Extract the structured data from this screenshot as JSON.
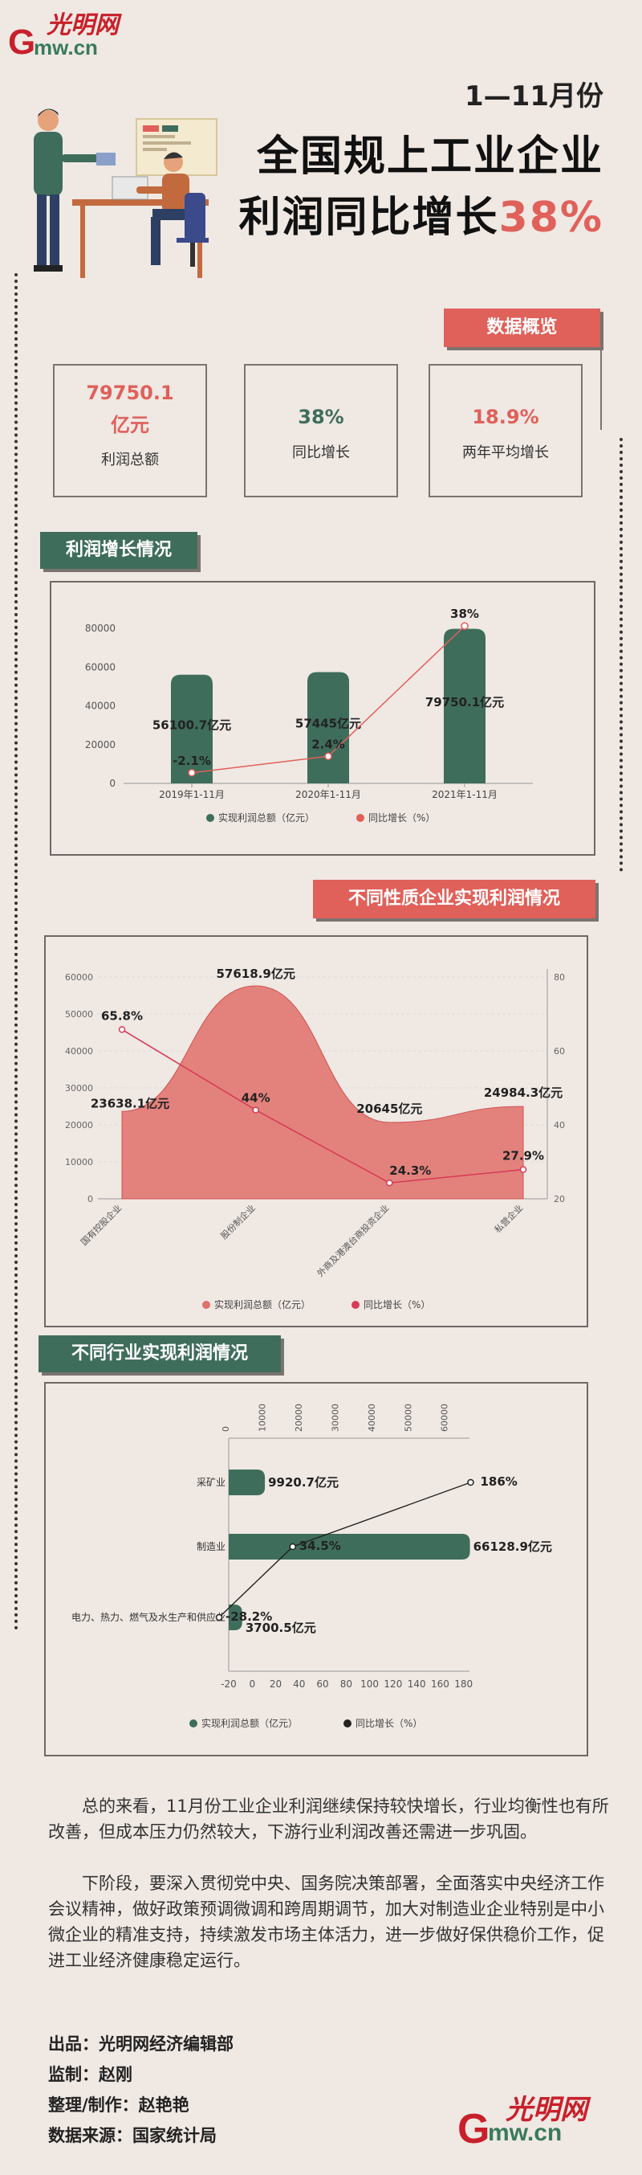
{
  "logo": {
    "cn": "光明网",
    "g": "G",
    "mw": "mw.cn"
  },
  "header": {
    "period": "1—11月份",
    "title_line1": "全国规上工业企业",
    "title_line2": "利润同比增长",
    "title_highlight": "38%"
  },
  "overview": {
    "tag": "数据概览",
    "stats": [
      {
        "value": "79750.1",
        "value2": "亿元",
        "label": "利润总额"
      },
      {
        "value": "38%",
        "label": "同比增长"
      },
      {
        "value": "18.9%",
        "label": "两年平均增长"
      }
    ]
  },
  "section1": {
    "tag": "利润增长情况",
    "chart_data": {
      "type": "bar",
      "categories": [
        "2019年1-11月",
        "2020年1-11月",
        "2021年1-11月"
      ],
      "series": [
        {
          "name": "实现利润总额（亿元）",
          "values": [
            56100.7,
            57445,
            79750.1
          ],
          "labels": [
            "56100.7亿元",
            "57445亿元",
            "79750.1亿元"
          ]
        },
        {
          "name": "同比增长（%）",
          "values": [
            -2.1,
            2.4,
            38
          ],
          "labels": [
            "-2.1%",
            "2.4%",
            "38%"
          ]
        }
      ],
      "y_ticks": [
        "0",
        "20000",
        "40000",
        "60000",
        "80000"
      ],
      "ylim": [
        0,
        85000
      ],
      "growth_range": [
        -5,
        40
      ],
      "bar_color": "#3f6d5c",
      "line_color": "#e0605a"
    }
  },
  "section2": {
    "tag": "不同性质企业实现利润情况",
    "chart_data": {
      "type": "area",
      "categories": [
        "国有控股企业",
        "股份制企业",
        "外商及港澳台商投资企业",
        "私营企业"
      ],
      "series": [
        {
          "name": "实现利润总额（亿元）",
          "values": [
            23638.1,
            57618.9,
            20645,
            24984.3
          ],
          "labels": [
            "23638.1亿元",
            "57618.9亿元",
            "20645亿元",
            "24984.3亿元"
          ]
        },
        {
          "name": "同比增长（%）",
          "values": [
            65.8,
            44,
            24.3,
            27.9
          ],
          "labels": [
            "65.8%",
            "44%",
            "24.3%",
            "27.9%"
          ]
        }
      ],
      "y_ticks_left": [
        "0",
        "10000",
        "20000",
        "30000",
        "40000",
        "50000",
        "60000"
      ],
      "y_ticks_right": [
        "20",
        "40",
        "60",
        "80"
      ],
      "ylim_left": [
        0,
        60000
      ],
      "ylim_right": [
        20,
        80
      ],
      "area_color": "#e0706a",
      "line_color": "#d63c58"
    }
  },
  "section3": {
    "tag": "不同行业实现利润情况",
    "chart_data": {
      "type": "bar",
      "orientation": "horizontal",
      "categories": [
        "采矿业",
        "制造业",
        "电力、热力、燃气及水生产和供应业"
      ],
      "series": [
        {
          "name": "实现利润总额（亿元）",
          "values": [
            9920.7,
            66128.9,
            3700.5
          ],
          "labels": [
            "9920.7亿元",
            "66128.9亿元",
            "3700.5亿元"
          ]
        },
        {
          "name": "同比增长（%）",
          "values": [
            186,
            34.5,
            -28.2
          ],
          "labels": [
            "186%",
            "34.5%",
            "-28.2%"
          ]
        }
      ],
      "top_ticks": [
        "0",
        "10000",
        "20000",
        "30000",
        "40000",
        "50000",
        "60000"
      ],
      "bottom_ticks": [
        "-20",
        "0",
        "20",
        "40",
        "60",
        "80",
        "100",
        "120",
        "140",
        "160",
        "180"
      ],
      "xlim_top": [
        0,
        66000
      ],
      "xlim_bottom": [
        -20,
        185
      ],
      "bar_color": "#3f6d5c",
      "line_color": "#222222"
    }
  },
  "summary": {
    "p1": "总的来看，11月份工业企业利润继续保持较快增长，行业均衡性也有所改善，但成本压力仍然较大，下游行业利润改善还需进一步巩固。",
    "p2": "下阶段，要深入贯彻党中央、国务院决策部署，全面落实中央经济工作会议精神，做好政策预调微调和跨周期调节，加大对制造业企业特别是中小微企业的精准支持，持续激发市场主体活力，进一步做好保供稳价工作，促进工业经济健康稳定运行。"
  },
  "credits": [
    "出品：光明网经济编辑部",
    "监制：赵刚",
    "整理/制作：赵艳艳",
    "数据来源：国家统计局"
  ]
}
